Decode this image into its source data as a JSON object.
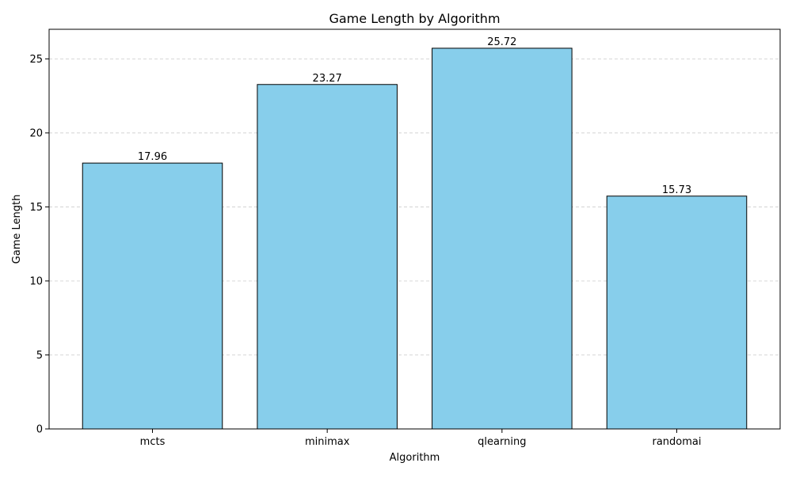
{
  "chart_data": {
    "type": "bar",
    "title": "Game Length by Algorithm",
    "xlabel": "Algorithm",
    "ylabel": "Game Length",
    "categories": [
      "mcts",
      "minimax",
      "qlearning",
      "randomai"
    ],
    "values": [
      17.96,
      23.27,
      25.72,
      15.73
    ],
    "value_labels": [
      "17.96",
      "23.27",
      "25.72",
      "15.73"
    ],
    "ylim": [
      0,
      27
    ],
    "yticks": [
      0,
      5,
      10,
      15,
      20,
      25
    ],
    "ytick_labels": [
      "0",
      "5",
      "10",
      "15",
      "20",
      "25"
    ],
    "grid": "y-dashed",
    "bar_color": "#87ceeb",
    "bar_edge_color": "#000000",
    "grid_color": "#cccccc"
  }
}
